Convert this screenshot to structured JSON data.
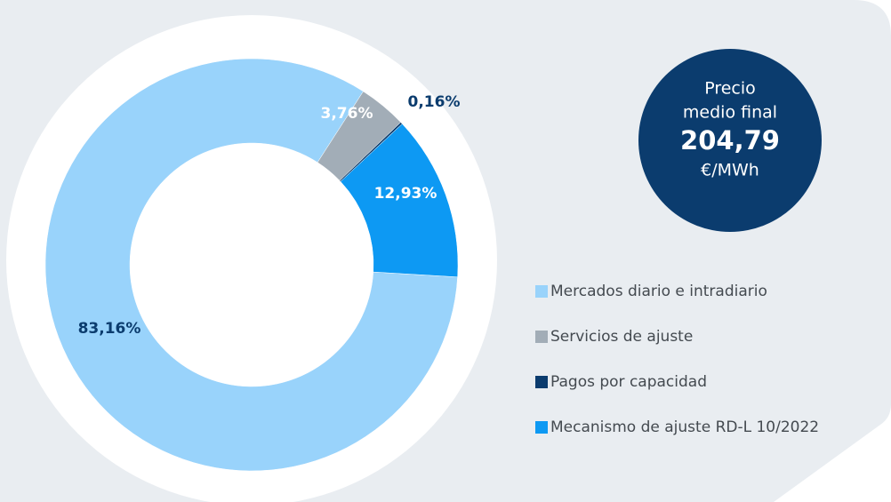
{
  "chart_data": {
    "type": "donut",
    "categories": [
      "Mercados diario e intradiario",
      "Servicios de ajuste",
      "Pagos por capacidad",
      "Mecanismo de ajuste RD-L 10/2022"
    ],
    "values": [
      83.16,
      3.76,
      0.16,
      12.93
    ],
    "value_labels": [
      "83,16%",
      "3,76%",
      "0,16%",
      "12,93%"
    ],
    "colors": [
      "#99d3fb",
      "#a2adb7",
      "#0b3c6e",
      "#0d99f3"
    ],
    "annotation": {
      "lines": [
        "Precio",
        "medio final"
      ],
      "value": "204,79",
      "unit": "€/MWh"
    }
  }
}
